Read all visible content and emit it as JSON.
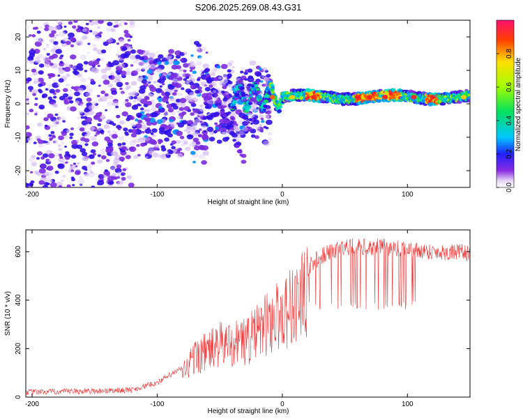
{
  "chart_data": [
    {
      "type": "heatmap",
      "title": "S206.2025.269.08.43.G31",
      "xlabel": "Height of straight line (km)",
      "ylabel": "Frequency (Hz)",
      "xlim": [
        -205,
        150
      ],
      "ylim": [
        -25,
        25
      ],
      "xticks": [
        -200,
        -100,
        0,
        100
      ],
      "yticks": [
        -20,
        -10,
        0,
        10,
        20
      ],
      "colorbar": {
        "label": "Normalized spectral amplitude",
        "range": [
          0,
          1
        ],
        "ticks": [
          0.0,
          0.2,
          0.4,
          0.6,
          0.8
        ]
      },
      "description": "Scattered low-amplitude speckle for heights below -100 km; concentrated ridge near 2 Hz for heights above -20 km, with peak amplitude near 1.0 around 20-30, 60-80 and 120 km."
    },
    {
      "type": "line",
      "xlabel": "Height of straight line (km)",
      "ylabel": "SNR (10 * v/v)",
      "xlim": [
        -205,
        150
      ],
      "ylim": [
        0,
        690
      ],
      "xticks": [
        -200,
        -100,
        0,
        100
      ],
      "yticks": [
        0,
        200,
        400,
        600
      ],
      "color": "#ee3333",
      "envelope": [
        {
          "x": -205,
          "y": 20
        },
        {
          "x": -150,
          "y": 25
        },
        {
          "x": -120,
          "y": 30
        },
        {
          "x": -100,
          "y": 60
        },
        {
          "x": -80,
          "y": 120
        },
        {
          "x": -70,
          "y": 200
        },
        {
          "x": -60,
          "y": 230
        },
        {
          "x": -50,
          "y": 260
        },
        {
          "x": -40,
          "y": 270
        },
        {
          "x": -30,
          "y": 280
        },
        {
          "x": -20,
          "y": 320
        },
        {
          "x": -10,
          "y": 380
        },
        {
          "x": 0,
          "y": 420
        },
        {
          "x": 10,
          "y": 470
        },
        {
          "x": 20,
          "y": 530
        },
        {
          "x": 30,
          "y": 580
        },
        {
          "x": 50,
          "y": 620
        },
        {
          "x": 80,
          "y": 620
        },
        {
          "x": 100,
          "y": 610
        },
        {
          "x": 120,
          "y": 600
        },
        {
          "x": 150,
          "y": 595
        }
      ],
      "dropout_range_km": [
        15,
        108
      ],
      "dropout_floor": 360
    }
  ]
}
